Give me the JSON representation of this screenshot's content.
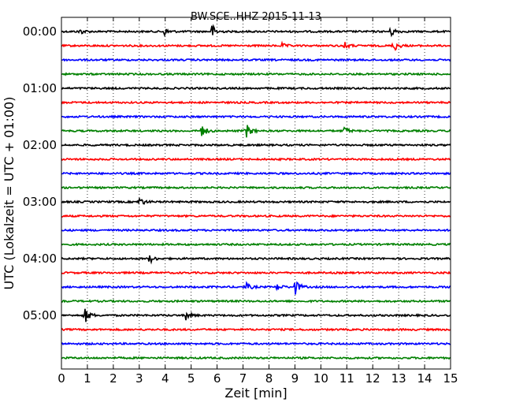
{
  "chart_data": {
    "type": "line",
    "title": "BW.SCE..HHZ 2015-11-13",
    "xlabel": "Zeit  [min]",
    "ylabel": "UTC (Lokalzeit = UTC + 01:00)",
    "xlim": [
      0,
      15
    ],
    "x_ticks": [
      "0",
      "1",
      "2",
      "3",
      "4",
      "5",
      "6",
      "7",
      "8",
      "9",
      "10",
      "11",
      "12",
      "13",
      "14",
      "15"
    ],
    "y_tick_labels": [
      "00:00",
      "01:00",
      "02:00",
      "03:00",
      "04:00",
      "05:00"
    ],
    "trace_interval_min": 15,
    "grid": true,
    "colors": [
      "#000000",
      "#ff0000",
      "#0000ff",
      "#008000"
    ],
    "traces": [
      {
        "start": "00:00",
        "color": "#000000",
        "events": [
          {
            "t": 0.7,
            "amp": 0.4
          },
          {
            "t": 3.95,
            "amp": 0.6
          },
          {
            "t": 5.8,
            "amp": 1.0
          },
          {
            "t": 12.7,
            "amp": 0.7
          }
        ]
      },
      {
        "start": "00:15",
        "color": "#ff0000",
        "events": [
          {
            "t": 8.5,
            "amp": 0.3
          },
          {
            "t": 10.9,
            "amp": 0.5
          },
          {
            "t": 12.8,
            "amp": 0.9
          }
        ]
      },
      {
        "start": "00:30",
        "color": "#0000ff",
        "events": []
      },
      {
        "start": "00:45",
        "color": "#008000",
        "events": []
      },
      {
        "start": "01:00",
        "color": "#000000",
        "events": []
      },
      {
        "start": "01:15",
        "color": "#ff0000",
        "events": []
      },
      {
        "start": "01:30",
        "color": "#0000ff",
        "events": []
      },
      {
        "start": "01:45",
        "color": "#008000",
        "events": [
          {
            "t": 5.4,
            "amp": 0.9
          },
          {
            "t": 7.1,
            "amp": 1.2
          },
          {
            "t": 10.9,
            "amp": 0.5
          }
        ]
      },
      {
        "start": "02:00",
        "color": "#000000",
        "events": []
      },
      {
        "start": "02:15",
        "color": "#ff0000",
        "events": []
      },
      {
        "start": "02:30",
        "color": "#0000ff",
        "events": []
      },
      {
        "start": "02:45",
        "color": "#008000",
        "events": []
      },
      {
        "start": "03:00",
        "color": "#000000",
        "events": [
          {
            "t": 3.0,
            "amp": 0.7
          }
        ]
      },
      {
        "start": "03:15",
        "color": "#ff0000",
        "events": []
      },
      {
        "start": "03:30",
        "color": "#0000ff",
        "events": []
      },
      {
        "start": "03:45",
        "color": "#008000",
        "events": []
      },
      {
        "start": "04:00",
        "color": "#000000",
        "events": [
          {
            "t": 3.4,
            "amp": 0.6
          }
        ]
      },
      {
        "start": "04:15",
        "color": "#ff0000",
        "events": []
      },
      {
        "start": "04:30",
        "color": "#0000ff",
        "events": [
          {
            "t": 7.1,
            "amp": 0.6
          },
          {
            "t": 8.3,
            "amp": 0.5
          },
          {
            "t": 9.0,
            "amp": 1.1
          }
        ]
      },
      {
        "start": "04:45",
        "color": "#008000",
        "events": []
      },
      {
        "start": "05:00",
        "color": "#000000",
        "events": [
          {
            "t": 0.9,
            "amp": 1.1
          },
          {
            "t": 4.8,
            "amp": 0.6
          }
        ]
      },
      {
        "start": "05:15",
        "color": "#ff0000",
        "events": []
      },
      {
        "start": "05:30",
        "color": "#0000ff",
        "events": []
      },
      {
        "start": "05:45",
        "color": "#008000",
        "events": []
      }
    ]
  }
}
